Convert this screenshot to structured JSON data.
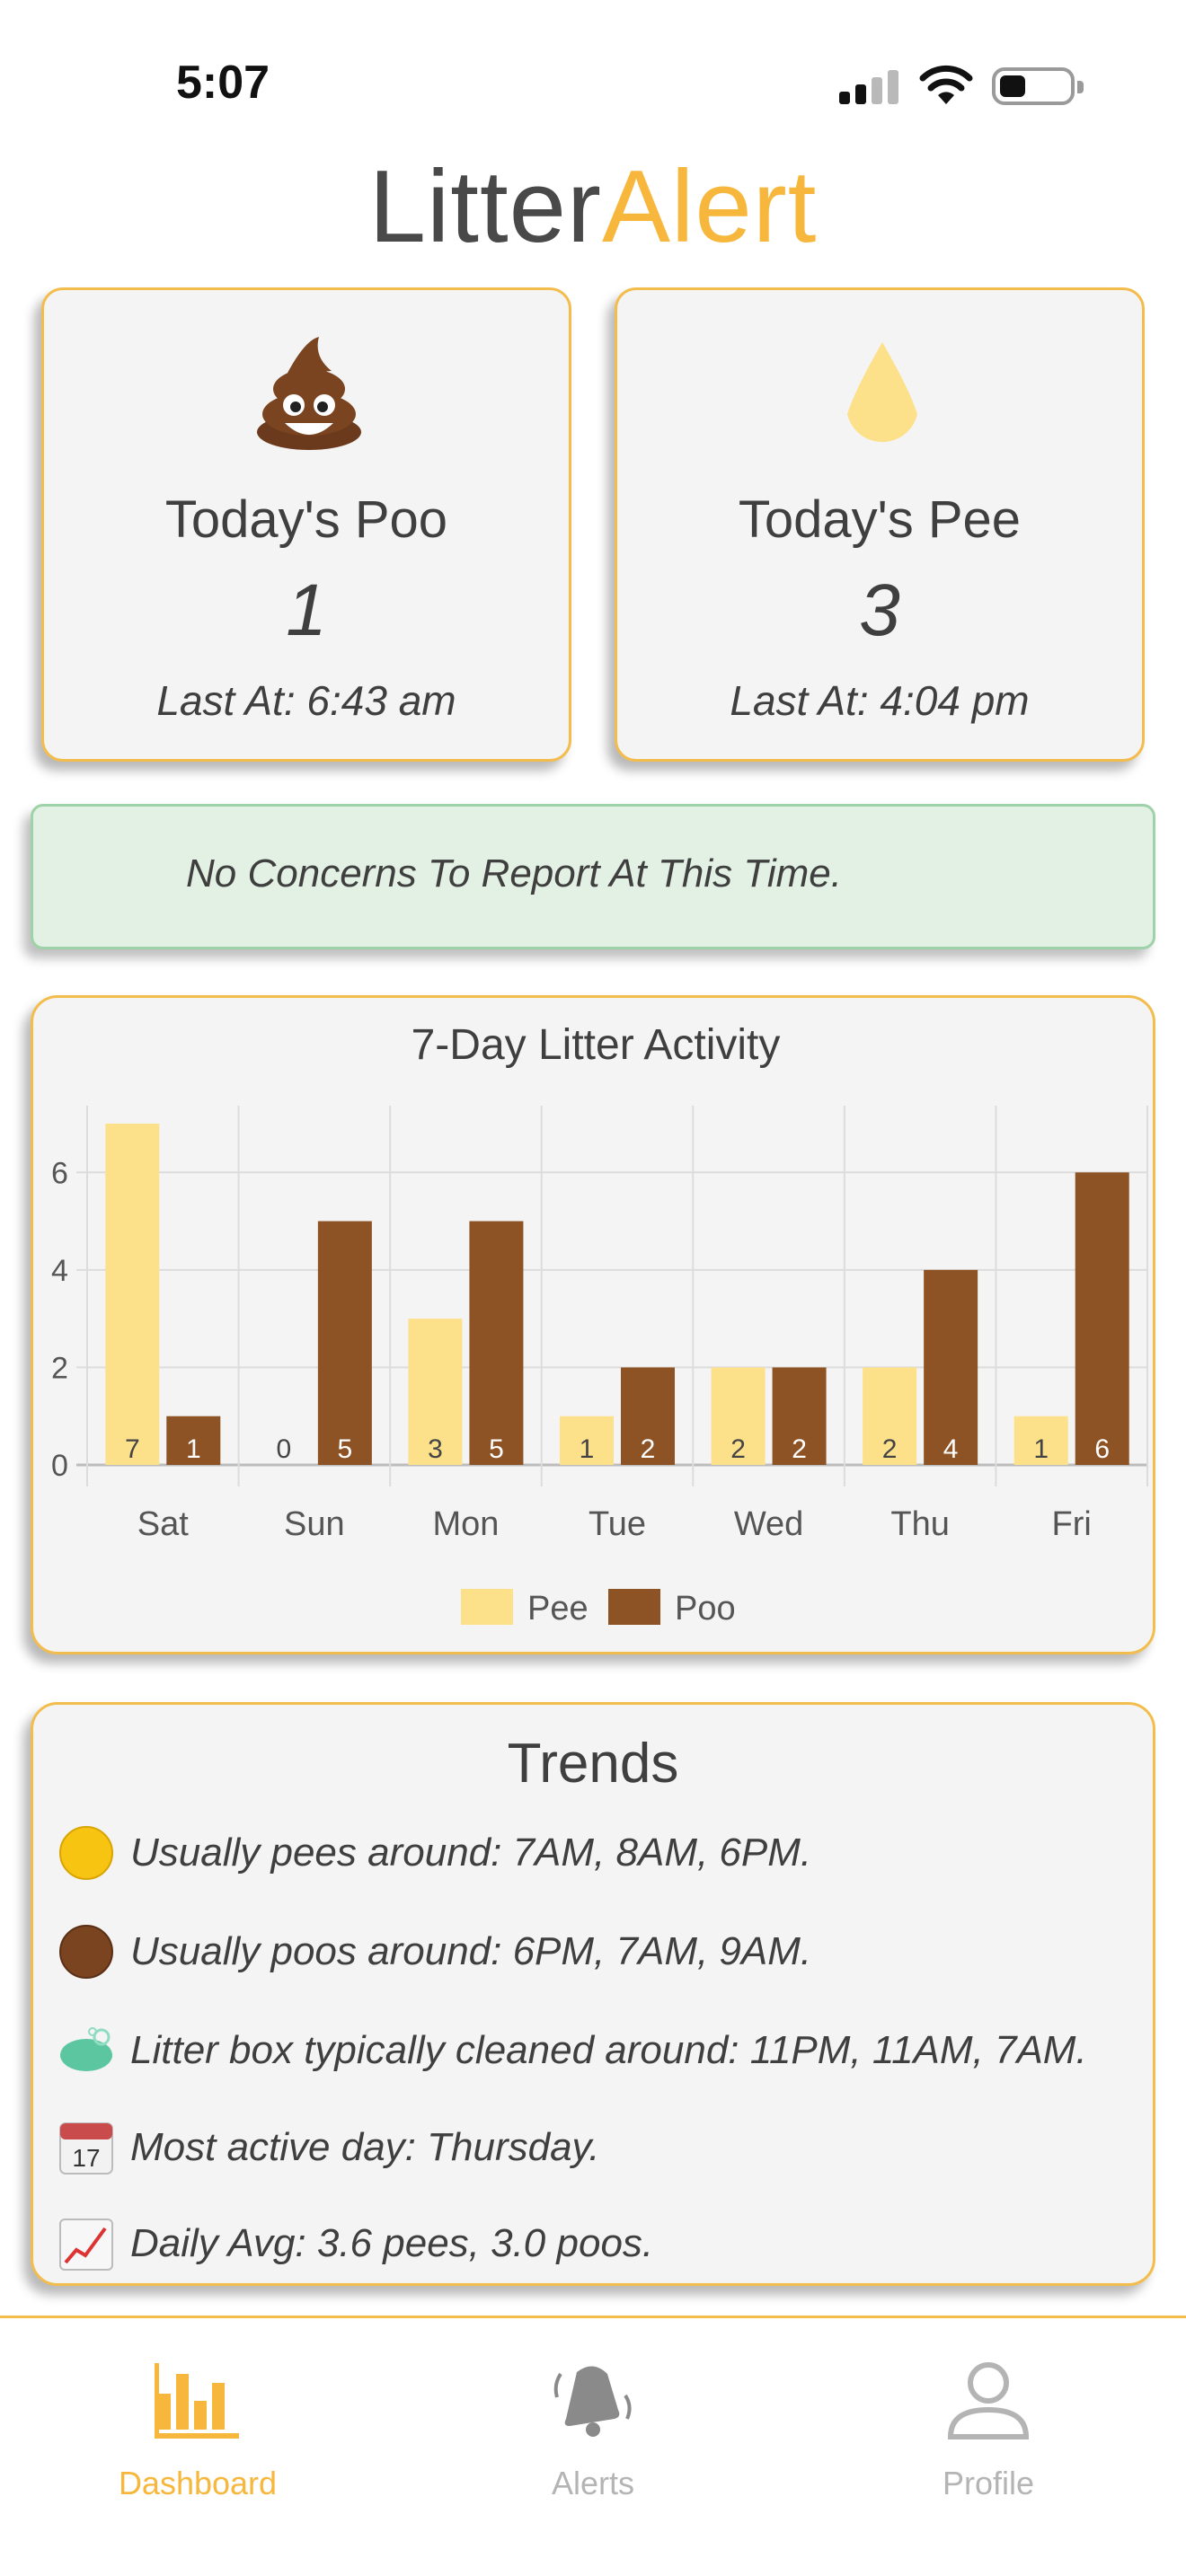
{
  "status_bar": {
    "time": "5:07"
  },
  "app": {
    "title_part1": "Litter",
    "title_part2": "Alert"
  },
  "poo_card": {
    "title": "Today's Poo",
    "count": "1",
    "last": "Last At: 6:43 am",
    "icon": "poop-emoji-icon"
  },
  "pee_card": {
    "title": "Today's Pee",
    "count": "3",
    "last": "Last At: 4:04 pm",
    "icon": "droplet-icon"
  },
  "concern": {
    "message": "No Concerns To Report At This Time."
  },
  "chart_data": {
    "type": "bar",
    "title": "7-Day Litter Activity",
    "categories": [
      "Sat",
      "Sun",
      "Mon",
      "Tue",
      "Wed",
      "Thu",
      "Fri"
    ],
    "series": [
      {
        "name": "Pee",
        "values": [
          7,
          0,
          3,
          1,
          2,
          2,
          1
        ],
        "color": "#fde08a"
      },
      {
        "name": "Poo",
        "values": [
          1,
          5,
          5,
          2,
          2,
          4,
          6
        ],
        "color": "#8e5325"
      }
    ],
    "y_ticks": [
      0,
      2,
      4,
      6
    ],
    "ylim": [
      0,
      7
    ],
    "grid": true,
    "legend": "bottom-center"
  },
  "trends": {
    "title": "Trends",
    "items": [
      {
        "icon": "yellow-circle-icon",
        "text": "Usually pees around: 7AM, 8AM, 6PM."
      },
      {
        "icon": "brown-circle-icon",
        "text": "Usually poos around: 6PM, 7AM, 9AM."
      },
      {
        "icon": "soap-icon",
        "text": "Litter box typically cleaned around: 11PM, 11AM, 7AM."
      },
      {
        "icon": "calendar-icon",
        "text": "Most active day: Thursday.",
        "icon_text": "17"
      },
      {
        "icon": "chart-increasing-icon",
        "text": "Daily Avg: 3.6 pees, 3.0 poos."
      }
    ]
  },
  "tabs": [
    {
      "label": "Dashboard",
      "icon": "bar-chart-icon",
      "active": true
    },
    {
      "label": "Alerts",
      "icon": "bell-icon",
      "active": false
    },
    {
      "label": "Profile",
      "icon": "person-icon",
      "active": false
    }
  ],
  "colors": {
    "accent": "#f6b73c",
    "pee": "#fde08a",
    "poo": "#8e5325",
    "concern_bg": "#e3f1e5",
    "inactive": "#b4b4b4"
  }
}
